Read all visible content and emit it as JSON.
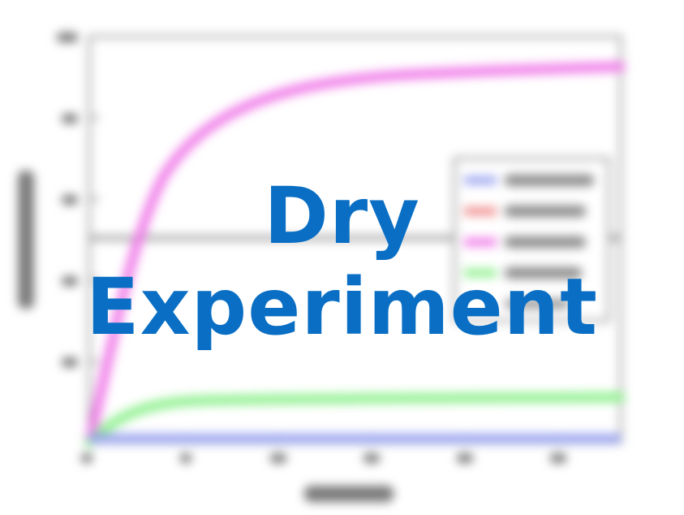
{
  "overlay": {
    "line1": "Dry",
    "line2": "Experiment",
    "color": "#0a6fc4"
  },
  "background_chart": {
    "note_visibility": "blurred",
    "colors": {
      "high_high": "#9aa4f0",
      "high_low": "#f08c8c",
      "low_high": "#f07ae8",
      "low_low": "#8ef08e",
      "reference": "#9a9a9a"
    }
  }
}
